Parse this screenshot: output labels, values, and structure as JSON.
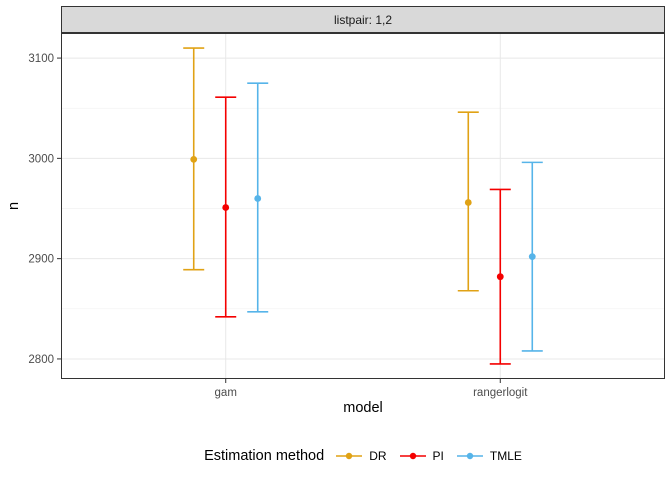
{
  "facet": {
    "strip_label": "listpair: 1,2"
  },
  "chart_data": {
    "type": "pointrange",
    "title": "",
    "facet_label": "listpair: 1,2",
    "xlabel": "model",
    "ylabel": "n",
    "categories": [
      "gam",
      "rangerlogit"
    ],
    "y_ticks": [
      2800,
      2900,
      3000,
      3100
    ],
    "y_minor_ticks": [
      2850,
      2950,
      3050
    ],
    "ylim": [
      2780,
      3125
    ],
    "grid": true,
    "legend_position": "bottom",
    "legend_title": "Estimation method",
    "series": [
      {
        "name": "DR",
        "color": "#e0a215",
        "points": [
          {
            "category": "gam",
            "mid": 2999,
            "lo": 2889,
            "hi": 3110
          },
          {
            "category": "rangerlogit",
            "mid": 2956,
            "lo": 2868,
            "hi": 3046
          }
        ]
      },
      {
        "name": "PI",
        "color": "#f40000",
        "points": [
          {
            "category": "gam",
            "mid": 2951,
            "lo": 2842,
            "hi": 3061
          },
          {
            "category": "rangerlogit",
            "mid": 2882,
            "lo": 2795,
            "hi": 2969
          }
        ]
      },
      {
        "name": "TMLE",
        "color": "#56b4e9",
        "points": [
          {
            "category": "gam",
            "mid": 2960,
            "lo": 2847,
            "hi": 3075
          },
          {
            "category": "rangerlogit",
            "mid": 2902,
            "lo": 2808,
            "hi": 2996
          }
        ]
      }
    ],
    "colors": {
      "strip_fill": "#d9d9d9",
      "panel_border": "#333333",
      "grid_major": "#e8e8e8",
      "grid_minor": "#f2f2f2",
      "tick_mark": "#333333",
      "tick_label": "#4d4d4d"
    }
  }
}
